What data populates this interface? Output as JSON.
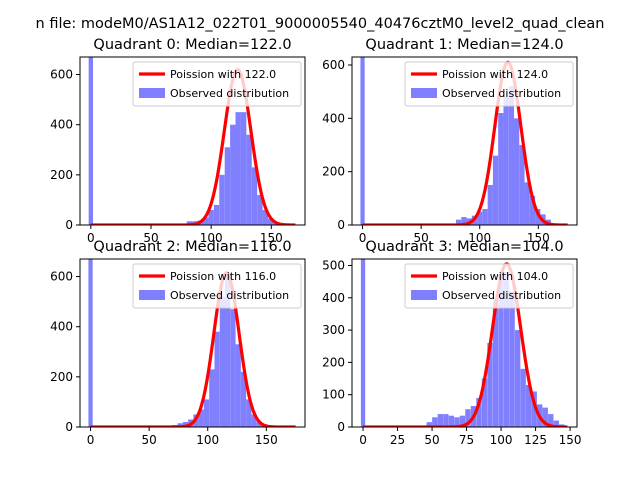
{
  "suptitle": "n file: modeM0/AS1A12_022T01_9000005540_40476cztM0_level2_quad_clean",
  "colors": {
    "observed": "#8080ff",
    "fit": "#ff0000",
    "axis": "#000000"
  },
  "chart_data": [
    {
      "type": "bar",
      "title": "Quadrant 0: Median=122.0",
      "xlim": [
        -9,
        178
      ],
      "ylim": [
        0,
        670
      ],
      "xticks": [
        0,
        50,
        100,
        150
      ],
      "yticks": [
        0,
        200,
        400,
        600
      ],
      "median": 122.0,
      "legend": {
        "placement": "top-right",
        "fit_label": "Poission with 122.0",
        "observed_label": "Observed distribution"
      },
      "spike": {
        "x": 0,
        "value": 670
      },
      "bin_width": 4.5,
      "bins": [
        {
          "x": 82,
          "value": 15
        },
        {
          "x": 86.5,
          "value": 15
        },
        {
          "x": 91,
          "value": 18
        },
        {
          "x": 95.5,
          "value": 30
        },
        {
          "x": 100,
          "value": 60
        },
        {
          "x": 104.5,
          "value": 80
        },
        {
          "x": 109,
          "value": 200
        },
        {
          "x": 113.5,
          "value": 310
        },
        {
          "x": 118,
          "value": 400
        },
        {
          "x": 122.5,
          "value": 450
        },
        {
          "x": 127,
          "value": 450
        },
        {
          "x": 131.5,
          "value": 360
        },
        {
          "x": 136,
          "value": 230
        },
        {
          "x": 140.5,
          "value": 120
        },
        {
          "x": 145,
          "value": 60
        },
        {
          "x": 149.5,
          "value": 25
        },
        {
          "x": 154,
          "value": 10
        },
        {
          "x": 158.5,
          "value": 5
        }
      ],
      "fit": {
        "x_start": 0,
        "x_end": 170,
        "peak": 620
      }
    },
    {
      "type": "bar",
      "title": "Quadrant 1: Median=124.0",
      "xlim": [
        -9,
        183
      ],
      "ylim": [
        0,
        630
      ],
      "xticks": [
        0,
        50,
        100,
        150
      ],
      "yticks": [
        0,
        200,
        400,
        600
      ],
      "median": 124.0,
      "legend": {
        "placement": "top-right",
        "fit_label": "Poission with 124.0",
        "observed_label": "Observed distribution"
      },
      "spike": {
        "x": 0,
        "value": 630
      },
      "bin_width": 4.5,
      "bins": [
        {
          "x": 82,
          "value": 20
        },
        {
          "x": 86.5,
          "value": 30
        },
        {
          "x": 91,
          "value": 25
        },
        {
          "x": 95.5,
          "value": 35
        },
        {
          "x": 100,
          "value": 50
        },
        {
          "x": 104.5,
          "value": 60
        },
        {
          "x": 109,
          "value": 150
        },
        {
          "x": 113.5,
          "value": 260
        },
        {
          "x": 118,
          "value": 420
        },
        {
          "x": 122.5,
          "value": 480
        },
        {
          "x": 127,
          "value": 520
        },
        {
          "x": 131.5,
          "value": 400
        },
        {
          "x": 136,
          "value": 300
        },
        {
          "x": 140.5,
          "value": 160
        },
        {
          "x": 145,
          "value": 110
        },
        {
          "x": 149.5,
          "value": 60
        },
        {
          "x": 154,
          "value": 40
        },
        {
          "x": 158.5,
          "value": 20
        },
        {
          "x": 163,
          "value": 5
        }
      ],
      "fit": {
        "x_start": 0,
        "x_end": 175,
        "peak": 610
      }
    },
    {
      "type": "bar",
      "title": "Quadrant 2: Median=116.0",
      "xlim": [
        -9,
        183
      ],
      "ylim": [
        0,
        670
      ],
      "xticks": [
        0,
        50,
        100,
        150
      ],
      "yticks": [
        0,
        200,
        400,
        600
      ],
      "median": 116.0,
      "legend": {
        "placement": "top-right",
        "fit_label": "Poission with 116.0",
        "observed_label": "Observed distribution"
      },
      "spike": {
        "x": 0,
        "value": 670
      },
      "bin_width": 4.5,
      "bins": [
        {
          "x": 72,
          "value": 8
        },
        {
          "x": 76.5,
          "value": 15
        },
        {
          "x": 81,
          "value": 20
        },
        {
          "x": 85.5,
          "value": 30
        },
        {
          "x": 90,
          "value": 50
        },
        {
          "x": 94.5,
          "value": 70
        },
        {
          "x": 99,
          "value": 110
        },
        {
          "x": 103.5,
          "value": 230
        },
        {
          "x": 108,
          "value": 380
        },
        {
          "x": 112.5,
          "value": 520
        },
        {
          "x": 117,
          "value": 610
        },
        {
          "x": 121.5,
          "value": 470
        },
        {
          "x": 126,
          "value": 330
        },
        {
          "x": 130.5,
          "value": 220
        },
        {
          "x": 135,
          "value": 110
        },
        {
          "x": 139.5,
          "value": 50
        },
        {
          "x": 144,
          "value": 20
        },
        {
          "x": 148.5,
          "value": 10
        }
      ],
      "fit": {
        "x_start": 0,
        "x_end": 175,
        "peak": 615
      }
    },
    {
      "type": "bar",
      "title": "Quadrant 3: Median=104.0",
      "xlim": [
        -8,
        155
      ],
      "ylim": [
        0,
        520
      ],
      "xticks": [
        0,
        25,
        50,
        75,
        100,
        125,
        150
      ],
      "yticks": [
        0,
        100,
        200,
        300,
        400,
        500
      ],
      "median": 104.0,
      "legend": {
        "placement": "top-right",
        "fit_label": "Poission with 104.0",
        "observed_label": "Observed distribution"
      },
      "spike": {
        "x": 0,
        "value": 520
      },
      "bin_width": 3.9,
      "bins": [
        {
          "x": 48,
          "value": 15
        },
        {
          "x": 52,
          "value": 30
        },
        {
          "x": 56,
          "value": 40
        },
        {
          "x": 60,
          "value": 40
        },
        {
          "x": 64,
          "value": 35
        },
        {
          "x": 68,
          "value": 30
        },
        {
          "x": 72,
          "value": 35
        },
        {
          "x": 76,
          "value": 55
        },
        {
          "x": 80,
          "value": 65
        },
        {
          "x": 84,
          "value": 90
        },
        {
          "x": 88,
          "value": 150
        },
        {
          "x": 92,
          "value": 260
        },
        {
          "x": 96,
          "value": 400
        },
        {
          "x": 100,
          "value": 470
        },
        {
          "x": 104,
          "value": 480
        },
        {
          "x": 108,
          "value": 420
        },
        {
          "x": 112,
          "value": 300
        },
        {
          "x": 116,
          "value": 180
        },
        {
          "x": 120,
          "value": 130
        },
        {
          "x": 124,
          "value": 110
        },
        {
          "x": 128,
          "value": 70
        },
        {
          "x": 132,
          "value": 60
        },
        {
          "x": 136,
          "value": 40
        },
        {
          "x": 140,
          "value": 20
        },
        {
          "x": 144,
          "value": 8
        }
      ],
      "fit": {
        "x_start": 0,
        "x_end": 148,
        "peak": 505
      }
    }
  ]
}
